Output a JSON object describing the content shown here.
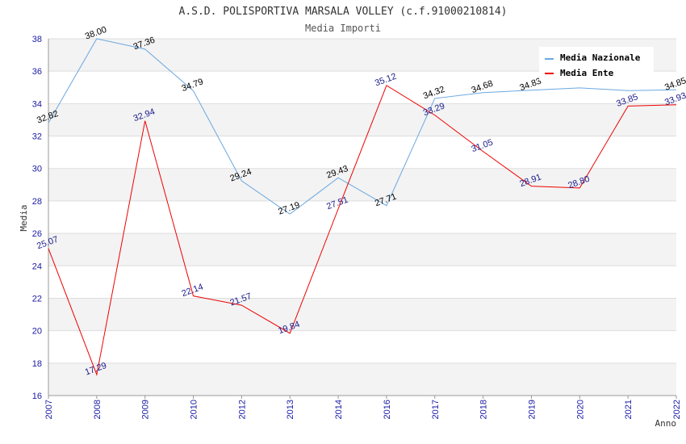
{
  "chart_data": {
    "type": "line",
    "title": "A.S.D. POLISPORTIVA MARSALA VOLLEY (c.f.91000210814)",
    "subtitle": "Media Importi",
    "xlabel": "Anno",
    "ylabel": "Media",
    "ylim": [
      16,
      38
    ],
    "yticks": [
      16,
      18,
      20,
      22,
      24,
      26,
      28,
      30,
      32,
      34,
      36,
      38
    ],
    "categories": [
      "2007",
      "2008",
      "2009",
      "2010",
      "2012",
      "2013",
      "2014",
      "2016",
      "2017",
      "2018",
      "2019",
      "2020",
      "2021",
      "2022"
    ],
    "grid": true,
    "legend_position": "top-right",
    "series": [
      {
        "name": "Media Nazionale",
        "color": "#6aa8e0",
        "label_color": "#000000",
        "values": [
          32.82,
          38.0,
          37.36,
          34.79,
          29.24,
          27.19,
          29.43,
          27.71,
          34.32,
          34.68,
          34.83,
          34.97,
          34.8,
          34.85
        ],
        "labels": [
          "32.82",
          "38.00",
          "37.36",
          "34.79",
          "29.24",
          "27.19",
          "29.43",
          "27.71",
          "34.32",
          "34.68",
          "34.83",
          "",
          "",
          "34.85"
        ]
      },
      {
        "name": "Media Ente",
        "color": "#ee0000",
        "label_color": "#1a1a8c",
        "values": [
          25.07,
          17.29,
          32.94,
          22.14,
          21.57,
          19.84,
          27.51,
          35.12,
          33.29,
          31.05,
          28.91,
          28.8,
          33.85,
          33.93
        ],
        "labels": [
          "25.07",
          "17.29",
          "32.94",
          "22.14",
          "21.57",
          "19.84",
          "27.51",
          "35.12",
          "33.29",
          "31.05",
          "28.91",
          "28.80",
          "33.85",
          "33.93"
        ]
      }
    ]
  }
}
